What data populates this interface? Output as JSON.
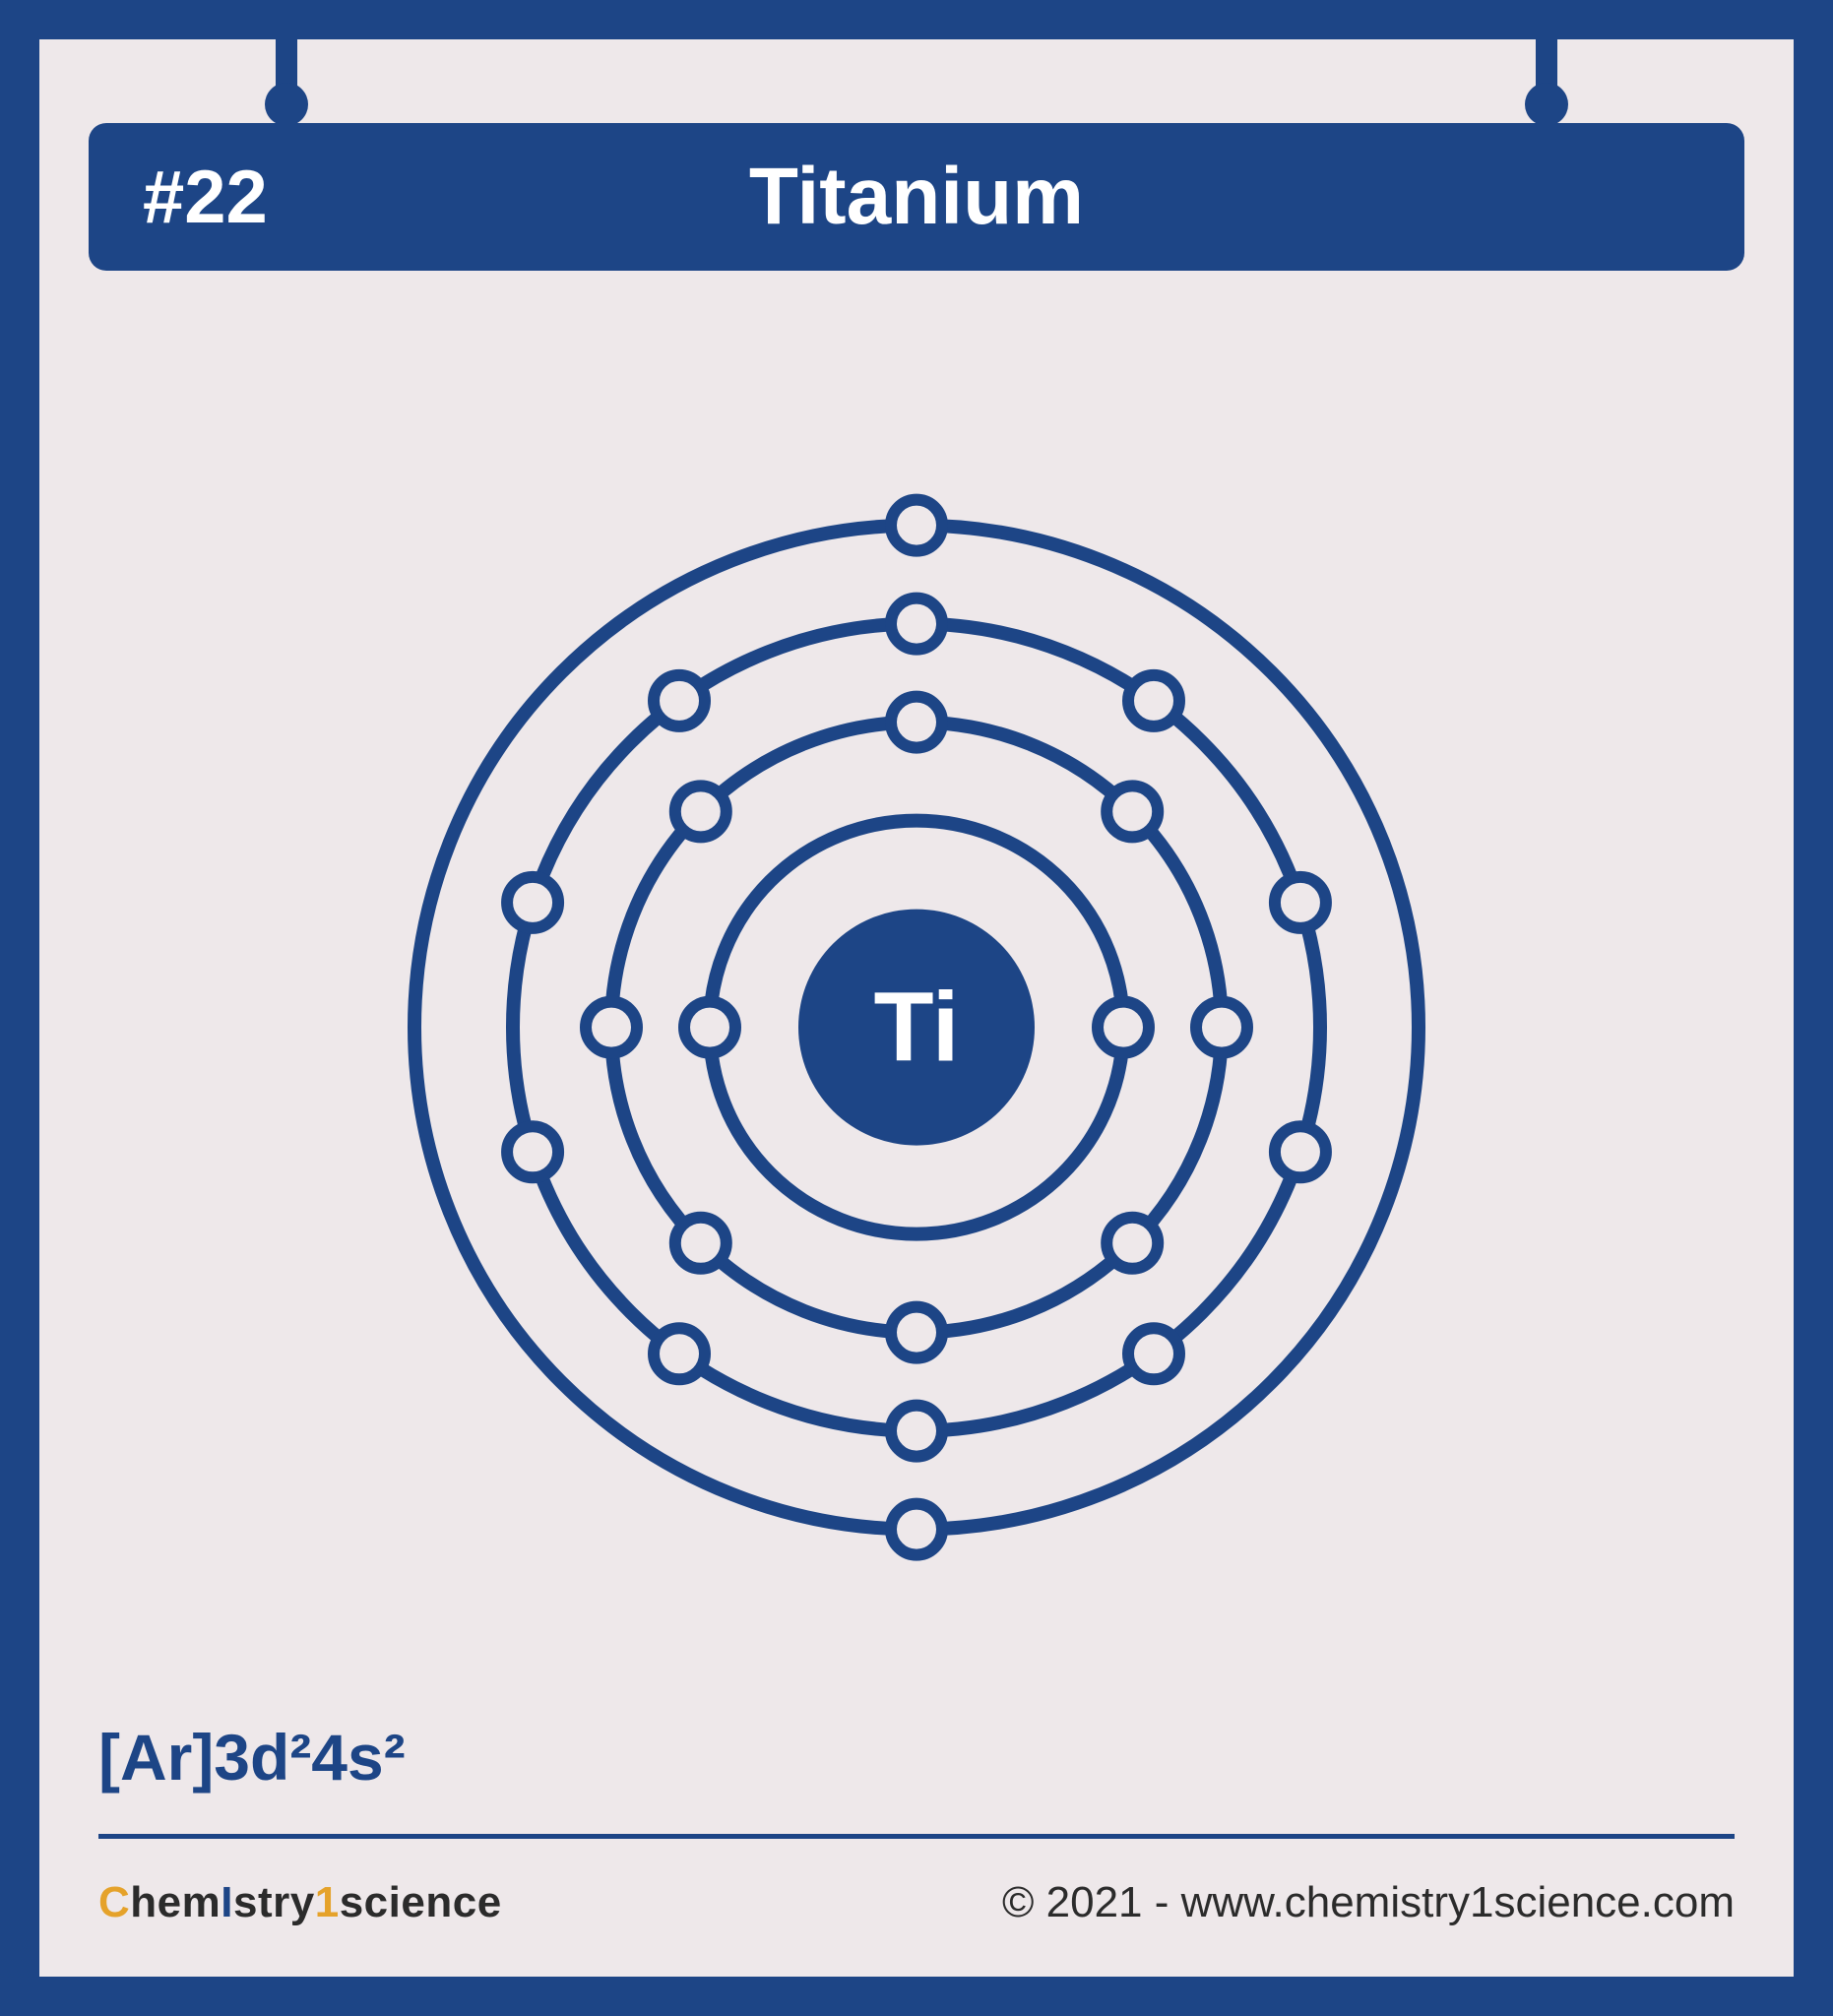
{
  "colors": {
    "primary": "#1d4586",
    "border": "#1d4586",
    "background": "#eee8ea",
    "electron_fill": "#eee8ea",
    "accent_orange": "#e5a22a",
    "text_dark": "#2b2b2b",
    "white": "#ffffff"
  },
  "header": {
    "atomic_number": "#22",
    "element_name": "Titanium"
  },
  "atom": {
    "symbol": "Ti",
    "symbol_fontsize": 100,
    "nucleus_radius": 120,
    "shell_stroke_width": 14,
    "electron_radius": 26,
    "electron_stroke_width": 12,
    "shells": [
      {
        "radius": 210,
        "electrons": 2,
        "start_angle_deg": 0
      },
      {
        "radius": 310,
        "electrons": 8,
        "start_angle_deg": -90
      },
      {
        "radius": 410,
        "electrons": 10,
        "start_angle_deg": -90
      },
      {
        "radius": 510,
        "electrons": 2,
        "start_angle_deg": -90
      }
    ],
    "svg_size": 1100
  },
  "electron_config": "[Ar]3d²4s²",
  "footer": {
    "brand_parts": {
      "c": "C",
      "hem": "hem",
      "i": "I",
      "stry": "stry",
      "one": "1",
      "science": "science"
    },
    "copyright": "© 2021 - www.chemistry1science.com"
  }
}
